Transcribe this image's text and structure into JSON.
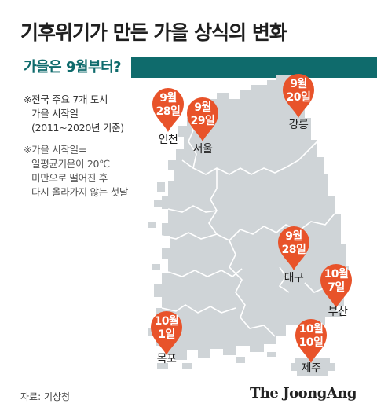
{
  "title": "기후위기가 만든 가을 상식의 변화",
  "subtitle": "가을은 9월부터?",
  "notes": {
    "scope": [
      "※전국 주요 7개 도시",
      "가을 시작일",
      "(2011~2020년 기준)"
    ],
    "definition": [
      "※가을 시작일=",
      "일평균기온이 20℃",
      "미만으로 떨어진 후",
      "다시 올라가지 않는 첫날"
    ]
  },
  "cities": [
    {
      "name": "인천",
      "month": "9월",
      "day": "28일"
    },
    {
      "name": "서울",
      "month": "9월",
      "day": "29일"
    },
    {
      "name": "강릉",
      "month": "9월",
      "day": "20일"
    },
    {
      "name": "대구",
      "month": "9월",
      "day": "28일"
    },
    {
      "name": "부산",
      "month": "10월",
      "day": "7일"
    },
    {
      "name": "목포",
      "month": "10월",
      "day": "1일"
    },
    {
      "name": "제주",
      "month": "10월",
      "day": "10일"
    }
  ],
  "colors": {
    "pin": "#e8532a",
    "band": "#0f6b6c",
    "land": "#cfd4d7",
    "border": "#ffffff"
  },
  "source": "자료: 기상청",
  "brand": "The JoongAng"
}
